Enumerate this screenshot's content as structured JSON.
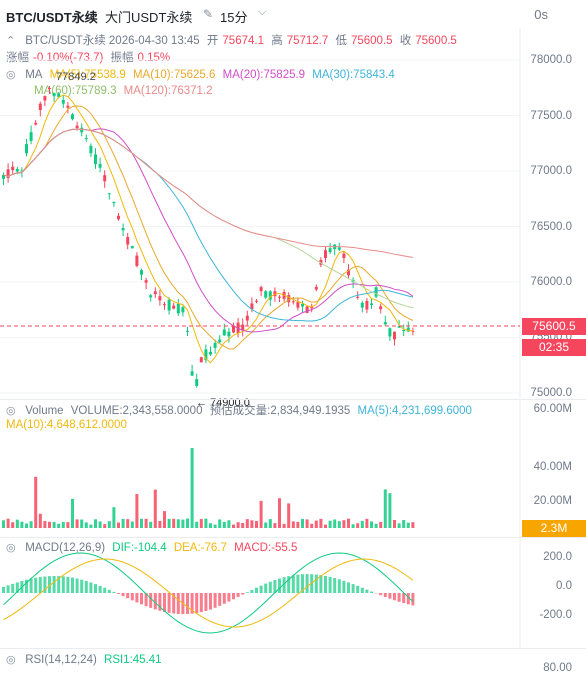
{
  "header": {
    "symbol": "BTC/USDT永续",
    "exchange": "大门USDT永续",
    "timeframe": "15分",
    "countdown": "0s"
  },
  "ohlc": {
    "line": "BTC/USDT永续  2026-04-30 13:45",
    "open_label": "开",
    "open": "75674.1",
    "high_label": "高",
    "high": "75712.7",
    "low_label": "低",
    "low": "75600.5",
    "close_label": "收",
    "close": "75600.5",
    "chg_label": "涨幅",
    "chg": "-0.10%(-73.7)",
    "amp_label": "振幅",
    "amp": "0.15%"
  },
  "ma": {
    "ma5": "MA(5):75538.9",
    "ma10": "MA(10):75625.6",
    "ma20": "MA(20):75825.9",
    "ma30": "MA(30):75843.4",
    "ma60": "MA(60):75789.3",
    "ma120": "MA(120):76371.2",
    "label": "MA",
    "ma5_obscured_high": "77849.2"
  },
  "price_axis": [
    "78000.0",
    "77500.0",
    "77000.0",
    "76500.0",
    "76000.0",
    "75500.0",
    "75000.0"
  ],
  "price_tag": "75600.5",
  "timer_tag": "02:35",
  "low_marker": "74900.0",
  "volume": {
    "label": "Volume",
    "vol": "VOLUME:2,343,558.0000",
    "est": "预估成交量:2,834,949.1935",
    "ma5": "MA(5):4,231,699.6000",
    "ma10": "MA(10):4,648,612.0000",
    "axis": [
      "60.00M",
      "40.00M",
      "20.00M"
    ],
    "tag": "2.3M"
  },
  "macd": {
    "label": "MACD(12,26,9)",
    "dif": "DIF:-104.4",
    "dea": "DEA:-76.7",
    "macd": "MACD:-55.5",
    "axis": [
      "200.0",
      "0.0",
      "-200.0"
    ]
  },
  "rsi": {
    "label": "RSI(14,12,24)",
    "rsi1": "RSI1:45.41",
    "axis": [
      "80.00"
    ]
  },
  "colors": {
    "up": "#0ecb81",
    "down": "#f6465d",
    "ma5": "#f0b90b",
    "ma10": "#e8a92d",
    "ma20": "#d04ec8",
    "ma30": "#3fb4d8",
    "ma60": "#b8d49a",
    "ma120": "#e88a8a"
  }
}
